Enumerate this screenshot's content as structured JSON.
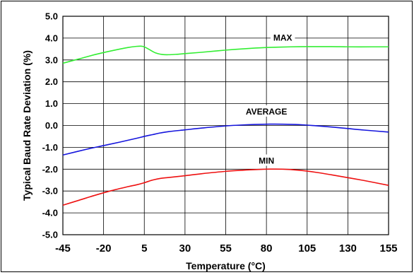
{
  "chart_data": {
    "type": "line",
    "xlabel": "Temperature (°C)",
    "ylabel": "Typical Baud Rate Deviation (%)",
    "xlim": [
      -45,
      155
    ],
    "ylim": [
      -5,
      5
    ],
    "x_ticks": [
      "-45",
      "-20",
      "5",
      "30",
      "55",
      "80",
      "105",
      "130",
      "155"
    ],
    "y_ticks": [
      "5.0",
      "4.0",
      "3.0",
      "2.0",
      "1.0",
      "0.0",
      "-1.0",
      "-2.0",
      "-3.0",
      "-4.0",
      "-5.0"
    ],
    "grid": true,
    "series": [
      {
        "name": "MAX",
        "color": "#33ee33",
        "x": [
          -45,
          -35,
          -25,
          -15,
          -5,
          0,
          3,
          5,
          8,
          12,
          16,
          20,
          25,
          30,
          40,
          55,
          70,
          80,
          95,
          105,
          120,
          130,
          145,
          155
        ],
        "y": [
          2.85,
          3.05,
          3.25,
          3.42,
          3.57,
          3.62,
          3.63,
          3.6,
          3.48,
          3.32,
          3.25,
          3.24,
          3.26,
          3.29,
          3.35,
          3.45,
          3.53,
          3.57,
          3.6,
          3.61,
          3.61,
          3.6,
          3.6,
          3.6
        ]
      },
      {
        "name": "AVERAGE",
        "color": "#1515dd",
        "x": [
          -45,
          -30,
          -20,
          -10,
          0,
          5,
          10,
          15,
          20,
          30,
          40,
          55,
          70,
          80,
          90,
          100,
          110,
          120,
          130,
          140,
          155
        ],
        "y": [
          -1.35,
          -1.08,
          -0.92,
          -0.76,
          -0.59,
          -0.5,
          -0.42,
          -0.34,
          -0.28,
          -0.2,
          -0.12,
          -0.02,
          0.04,
          0.06,
          0.06,
          0.04,
          -0.01,
          -0.07,
          -0.14,
          -0.21,
          -0.3
        ]
      },
      {
        "name": "MIN",
        "color": "#ee1111",
        "x": [
          -45,
          -35,
          -25,
          -15,
          -5,
          0,
          5,
          10,
          15,
          20,
          30,
          40,
          55,
          70,
          80,
          90,
          100,
          110,
          120,
          130,
          140,
          155
        ],
        "y": [
          -3.65,
          -3.42,
          -3.19,
          -2.98,
          -2.8,
          -2.72,
          -2.62,
          -2.5,
          -2.42,
          -2.38,
          -2.3,
          -2.21,
          -2.1,
          -2.03,
          -2.0,
          -2.0,
          -2.05,
          -2.14,
          -2.26,
          -2.39,
          -2.52,
          -2.74
        ]
      }
    ],
    "annotations": [
      "MAX",
      "AVERAGE",
      "MIN"
    ]
  }
}
